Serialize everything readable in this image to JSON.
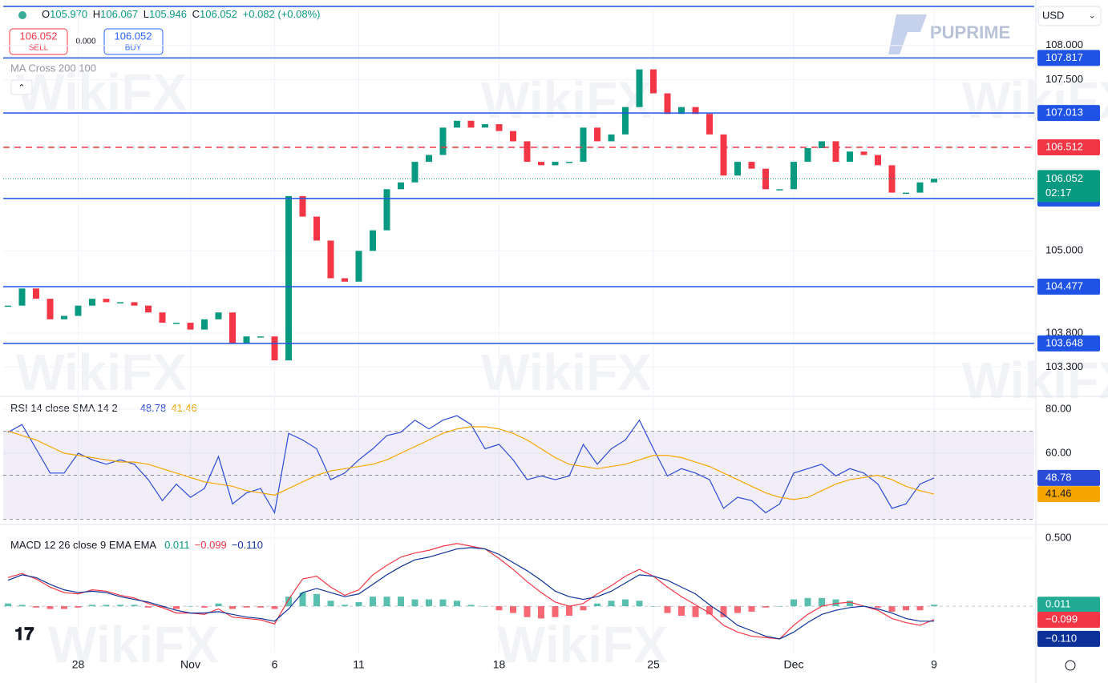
{
  "ui": {
    "ohlc": [
      {
        "label": "O",
        "value": "105.970"
      },
      {
        "label": "H",
        "value": "106.067"
      },
      {
        "label": "L",
        "value": "105.946"
      },
      {
        "label": "C",
        "value": "106.052"
      }
    ],
    "change": "+0.082 (+0.08%)",
    "sell": {
      "price": "106.052",
      "label": "SELL"
    },
    "spread": "0.000",
    "buy": {
      "price": "106.052",
      "label": "BUY"
    },
    "currency": "USD",
    "brand": "PUPRIME",
    "watermark": "WikiFX"
  },
  "chart_data": [
    {
      "type": "candlestick",
      "title": "MA Cross 200 100",
      "up_color": "#089981",
      "down_color": "#f23645",
      "values": [
        104.2,
        104.45,
        104.3,
        104.0,
        104.05,
        104.2,
        104.3,
        104.25,
        104.25,
        104.2,
        104.1,
        103.95,
        103.95,
        103.85,
        104.0,
        104.1,
        103.65,
        103.75,
        103.75,
        103.4,
        105.8,
        105.5,
        105.15,
        104.6,
        104.55,
        105.0,
        105.3,
        105.9,
        106.0,
        106.3,
        106.4,
        106.8,
        106.9,
        106.8,
        106.85,
        106.75,
        106.6,
        106.3,
        106.25,
        106.3,
        106.3,
        106.8,
        106.6,
        106.7,
        107.1,
        107.65,
        107.3,
        107.0,
        107.1,
        107.0,
        106.7,
        106.1,
        106.3,
        106.2,
        105.9,
        105.9,
        106.3,
        106.5,
        106.6,
        106.3,
        106.45,
        106.4,
        106.25,
        105.85,
        105.85,
        106.0,
        106.052
      ],
      "countdown": "02:17",
      "ylim": [
        102.91,
        108.57
      ],
      "yticks": [
        {
          "value": 108,
          "label": "108.000"
        },
        {
          "value": 107.5,
          "label": "107.500"
        },
        {
          "value": 105,
          "label": "105.000"
        },
        {
          "value": 103.8,
          "label": "103.800"
        },
        {
          "value": 103.3,
          "label": "103.300"
        }
      ],
      "xticks": [
        {
          "value": 5,
          "label": "28"
        },
        {
          "value": 13,
          "label": "Nov"
        },
        {
          "value": 19,
          "label": "6"
        },
        {
          "value": 25,
          "label": "11"
        },
        {
          "value": 35,
          "label": "18"
        },
        {
          "value": 46,
          "label": "25"
        },
        {
          "value": 56,
          "label": "Dec"
        },
        {
          "value": 66,
          "label": "9"
        }
      ],
      "levels": [
        {
          "value": 107.817,
          "color": "#1e53e5",
          "dashed": false
        },
        {
          "value": 107.013,
          "color": "#1e53e5",
          "dashed": false
        },
        {
          "value": 106.512,
          "color": "#f23645",
          "dashed": true
        },
        {
          "value": 105.765,
          "color": "#1e53e5",
          "dashed": false
        },
        {
          "value": 104.477,
          "color": "#1e53e5",
          "dashed": false
        },
        {
          "value": 103.648,
          "color": "#1e53e5",
          "dashed": false
        }
      ]
    },
    {
      "type": "line",
      "title": "RSI 14 close SMA 14 2",
      "ylim": [
        29.5,
        84.7
      ],
      "yticks": [
        {
          "value": 80,
          "label": "80.00"
        },
        {
          "value": 60,
          "label": "60.00"
        }
      ],
      "band": [
        30,
        70
      ],
      "levels": [
        70,
        50,
        30
      ],
      "series": [
        {
          "color": "#2a4bd7",
          "values": [
            69.5,
            73,
            62,
            51,
            51,
            60,
            57,
            55,
            57,
            55,
            48,
            38.5,
            46,
            40,
            44,
            58.5,
            37,
            42,
            44,
            33,
            69,
            66,
            62,
            48,
            51,
            57,
            62,
            68,
            69.5,
            75,
            71,
            75,
            77,
            73,
            62,
            64,
            57,
            48,
            49.7,
            48,
            49.7,
            64,
            55,
            62,
            66,
            75,
            62,
            49.7,
            53,
            51,
            48,
            35,
            40,
            38.5,
            33,
            37,
            51,
            53,
            55,
            49.7,
            53,
            51,
            46,
            35,
            37,
            46,
            48.78
          ]
        },
        {
          "color": "#f7a600",
          "values": [
            70,
            68,
            66,
            63,
            60,
            59,
            58,
            57,
            56,
            56,
            55,
            53,
            51,
            49,
            47,
            46,
            45,
            43,
            42,
            41,
            44,
            47,
            50,
            52,
            53,
            54,
            55,
            57,
            60,
            63,
            66,
            69,
            71,
            72,
            72,
            71,
            69,
            66,
            62,
            58,
            55,
            54,
            53,
            54,
            55,
            57,
            59,
            59,
            58,
            56,
            54,
            51,
            48,
            45,
            42,
            40,
            39,
            40,
            43,
            46,
            48,
            49,
            50,
            48,
            45,
            43,
            41.46
          ]
        }
      ]
    },
    {
      "type": "macd",
      "title": "MACD 12 26 close 9 EMA EMA",
      "ylim": [
        -0.34,
        0.57
      ],
      "yticks": [
        {
          "value": 0.5,
          "label": "0.500"
        }
      ],
      "histogram": {
        "up_color": "#22ab94",
        "down_color": "#f23645",
        "values": [
          0.02,
          0.01,
          -0.01,
          -0.02,
          -0.02,
          -0.01,
          0.01,
          0.01,
          0.01,
          0.01,
          -0.01,
          -0.01,
          -0.02,
          0,
          -0.01,
          0.02,
          -0.02,
          -0.01,
          -0.01,
          -0.02,
          0.07,
          0.1,
          0.09,
          0.04,
          0.01,
          0.03,
          0.07,
          0.07,
          0.07,
          0.05,
          0.05,
          0.05,
          0.04,
          0.01,
          0,
          -0.03,
          -0.05,
          -0.08,
          -0.09,
          -0.08,
          -0.07,
          -0.03,
          0.02,
          0.04,
          0.05,
          0.04,
          0,
          -0.05,
          -0.07,
          -0.08,
          -0.06,
          -0.08,
          -0.05,
          -0.04,
          -0.01,
          0,
          0.05,
          0.06,
          0.06,
          0.05,
          0.04,
          0,
          -0.01,
          -0.04,
          -0.03,
          -0.03,
          0.011
        ]
      },
      "series": [
        {
          "color": "#f23645",
          "last_label": "−0.099",
          "values": [
            0.21,
            0.24,
            0.2,
            0.14,
            0.1,
            0.09,
            0.12,
            0.11,
            0.08,
            0.06,
            0.02,
            -0.01,
            -0.05,
            -0.05,
            -0.06,
            -0.02,
            -0.08,
            -0.09,
            -0.1,
            -0.13,
            0.05,
            0.2,
            0.22,
            0.14,
            0.08,
            0.12,
            0.23,
            0.3,
            0.36,
            0.39,
            0.41,
            0.44,
            0.46,
            0.44,
            0.42,
            0.35,
            0.27,
            0.18,
            0.1,
            0.03,
            0,
            0.02,
            0.09,
            0.15,
            0.22,
            0.27,
            0.22,
            0.14,
            0.07,
            0.01,
            -0.05,
            -0.14,
            -0.19,
            -0.22,
            -0.23,
            -0.24,
            -0.14,
            -0.06,
            0,
            0.02,
            0.03,
            0,
            -0.03,
            -0.09,
            -0.12,
            -0.14,
            -0.099
          ]
        },
        {
          "color": "#0c3299",
          "last_label": "−0.110",
          "values": [
            0.19,
            0.23,
            0.21,
            0.16,
            0.12,
            0.1,
            0.11,
            0.1,
            0.07,
            0.05,
            0.03,
            0,
            -0.03,
            -0.05,
            -0.05,
            -0.04,
            -0.06,
            -0.08,
            -0.09,
            -0.11,
            -0.02,
            0.1,
            0.13,
            0.1,
            0.07,
            0.09,
            0.16,
            0.23,
            0.29,
            0.34,
            0.36,
            0.39,
            0.42,
            0.43,
            0.42,
            0.38,
            0.32,
            0.26,
            0.19,
            0.11,
            0.07,
            0.05,
            0.07,
            0.11,
            0.17,
            0.23,
            0.22,
            0.19,
            0.14,
            0.09,
            0.01,
            -0.06,
            -0.14,
            -0.18,
            -0.22,
            -0.24,
            -0.19,
            -0.12,
            -0.06,
            -0.03,
            -0.01,
            0,
            -0.02,
            -0.05,
            -0.09,
            -0.11,
            -0.11
          ]
        }
      ]
    }
  ]
}
